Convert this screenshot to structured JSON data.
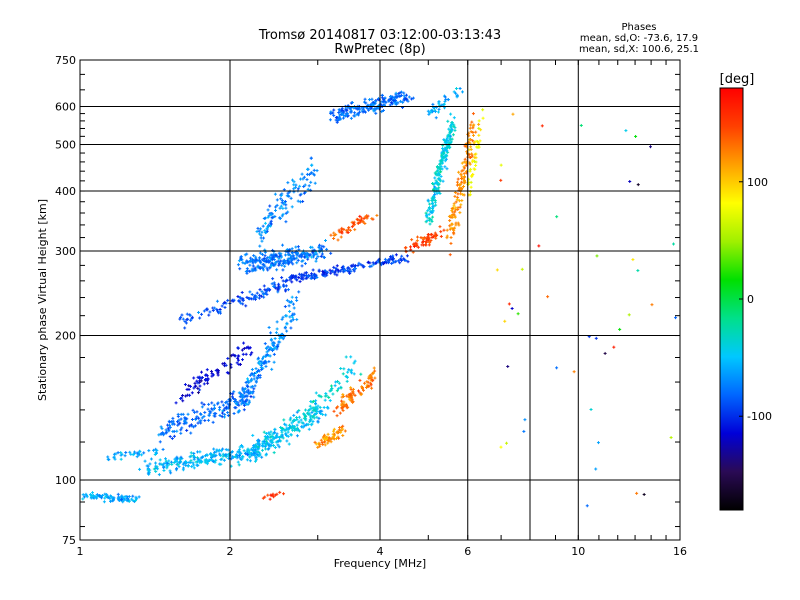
{
  "chart_data": {
    "type": "scatter",
    "title": "Tromsø 20140817 03:12:00-03:13:43",
    "subtitle": "RwPretec (8p)",
    "xlabel": "Frequency [MHz]",
    "ylabel": "Stationary phase Virtual Height [km]",
    "x_scale": "log",
    "y_scale": "log",
    "xlim": [
      1,
      16
    ],
    "ylim": [
      75,
      750
    ],
    "x_ticks": [
      1,
      2,
      4,
      6,
      10,
      16
    ],
    "x_gridlines": [
      2,
      4,
      6,
      8,
      10
    ],
    "y_ticks": [
      75,
      100,
      200,
      300,
      400,
      500,
      600,
      750
    ],
    "y_gridlines": [
      100,
      200,
      300,
      400,
      500,
      600
    ],
    "grid": true,
    "stats": {
      "heading": "Phases",
      "line1": "mean, sd,O: -73.6, 17.9",
      "line2": "mean, sd,X: 100.6, 25.1"
    },
    "colorbar": {
      "label": "[deg]",
      "range": [
        -180,
        180
      ],
      "ticks": [
        100,
        0,
        -100
      ],
      "colors": [
        "#000000",
        "#2a0a55",
        "#0000d8",
        "#0066ff",
        "#00c8ff",
        "#00e08a",
        "#00e000",
        "#a0f000",
        "#ffff00",
        "#ffa000",
        "#ff4000",
        "#ff0000"
      ]
    },
    "series": [
      {
        "x": [
          1.0,
          1.3
        ],
        "y": [
          93,
          91
        ],
        "phase": -60,
        "n": 90,
        "jx": 0.015,
        "jy": 0.012
      },
      {
        "x": [
          1.15,
          1.45
        ],
        "y": [
          112,
          114
        ],
        "phase": -60,
        "n": 40,
        "jx": 0.015,
        "jy": 0.015
      },
      {
        "x": [
          1.35,
          2.3
        ],
        "y": [
          106,
          115
        ],
        "phase": -55,
        "n": 240,
        "jx": 0.02,
        "jy": 0.03
      },
      {
        "x": [
          1.45,
          2.2
        ],
        "y": [
          125,
          150
        ],
        "phase": -80,
        "n": 170,
        "jx": 0.02,
        "jy": 0.035
      },
      {
        "x": [
          1.6,
          2.2
        ],
        "y": [
          150,
          190
        ],
        "phase": -115,
        "n": 90,
        "jx": 0.02,
        "jy": 0.03
      },
      {
        "x": [
          2.2,
          3.1
        ],
        "y": [
          115,
          140
        ],
        "phase": -50,
        "n": 220,
        "jx": 0.025,
        "jy": 0.04
      },
      {
        "x": [
          2.1,
          2.7
        ],
        "y": [
          145,
          230
        ],
        "phase": -70,
        "n": 180,
        "jx": 0.02,
        "jy": 0.05
      },
      {
        "x": [
          2.7,
          3.6
        ],
        "y": [
          130,
          175
        ],
        "phase": -40,
        "n": 70,
        "jx": 0.02,
        "jy": 0.04
      },
      {
        "x": [
          3.0,
          3.4
        ],
        "y": [
          118,
          128
        ],
        "phase": 120,
        "n": 60,
        "jx": 0.015,
        "jy": 0.02
      },
      {
        "x": [
          3.3,
          3.9
        ],
        "y": [
          140,
          165
        ],
        "phase": 130,
        "n": 90,
        "jx": 0.015,
        "jy": 0.03
      },
      {
        "x": [
          1.6,
          2.6
        ],
        "y": [
          215,
          255
        ],
        "phase": -90,
        "n": 110,
        "jx": 0.02,
        "jy": 0.02
      },
      {
        "x": [
          2.1,
          3.1
        ],
        "y": [
          280,
          300
        ],
        "phase": -75,
        "n": 260,
        "jx": 0.025,
        "jy": 0.035
      },
      {
        "x": [
          2.3,
          3.0
        ],
        "y": [
          330,
          450
        ],
        "phase": -70,
        "n": 120,
        "jx": 0.02,
        "jy": 0.05
      },
      {
        "x": [
          2.5,
          4.5
        ],
        "y": [
          260,
          290
        ],
        "phase": -95,
        "n": 180,
        "jx": 0.03,
        "jy": 0.015
      },
      {
        "x": [
          3.2,
          4.6
        ],
        "y": [
          575,
          630
        ],
        "phase": -80,
        "n": 200,
        "jx": 0.025,
        "jy": 0.025
      },
      {
        "x": [
          3.2,
          3.9
        ],
        "y": [
          320,
          360
        ],
        "phase": 140,
        "n": 50,
        "jx": 0.015,
        "jy": 0.02
      },
      {
        "x": [
          4.5,
          5.3
        ],
        "y": [
          300,
          330
        ],
        "phase": 150,
        "n": 60,
        "jx": 0.015,
        "jy": 0.02
      },
      {
        "x": [
          5.0,
          5.6
        ],
        "y": [
          350,
          560
        ],
        "phase": -40,
        "n": 200,
        "jx": 0.012,
        "jy": 0.04
      },
      {
        "x": [
          5.5,
          6.2
        ],
        "y": [
          320,
          560
        ],
        "phase": 120,
        "n": 140,
        "jx": 0.015,
        "jy": 0.06
      },
      {
        "x": [
          6.0,
          6.4
        ],
        "y": [
          400,
          560
        ],
        "phase": 80,
        "n": 40,
        "jx": 0.01,
        "jy": 0.05
      },
      {
        "x": [
          5.0,
          5.8
        ],
        "y": [
          580,
          650
        ],
        "phase": -60,
        "n": 40,
        "jx": 0.015,
        "jy": 0.02
      },
      {
        "x": [
          2.3,
          2.6
        ],
        "y": [
          92,
          94
        ],
        "phase": 160,
        "n": 12,
        "jx": 0.01,
        "jy": 0.01
      },
      {
        "x": [
          6.5,
          15.8
        ],
        "y": [
          85,
          650
        ],
        "phase": 0,
        "n": 45,
        "jx": 0.0,
        "jy": 0.0,
        "random": true
      }
    ]
  }
}
